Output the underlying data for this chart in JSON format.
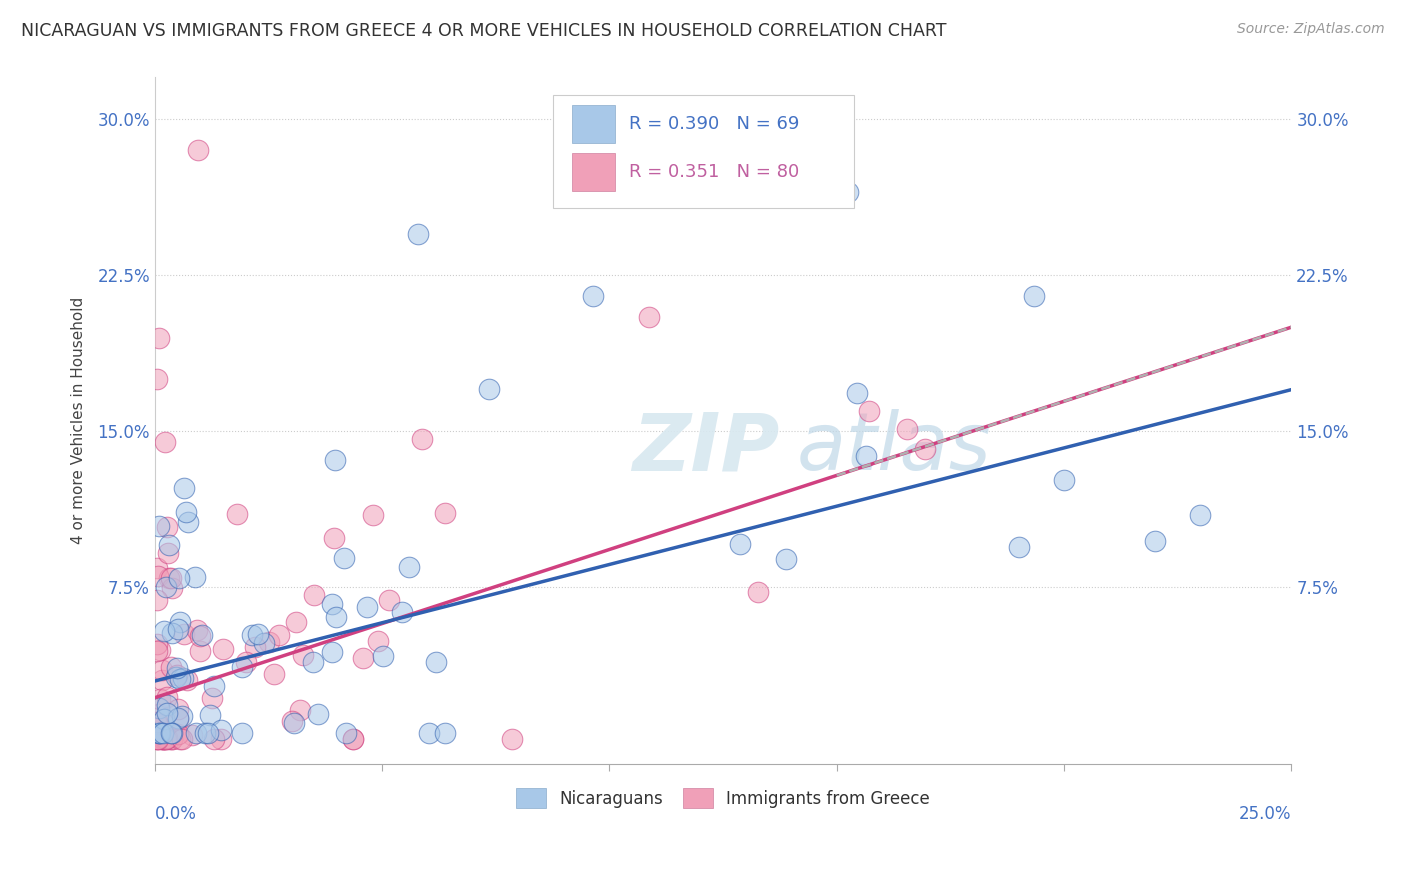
{
  "title": "NICARAGUAN VS IMMIGRANTS FROM GREECE 4 OR MORE VEHICLES IN HOUSEHOLD CORRELATION CHART",
  "source": "Source: ZipAtlas.com",
  "ylabel": "4 or more Vehicles in Household",
  "ytick_positions": [
    0.0,
    0.075,
    0.15,
    0.225,
    0.3
  ],
  "ytick_labels": [
    "",
    "7.5%",
    "15.0%",
    "22.5%",
    "30.0%"
  ],
  "xlim": [
    0.0,
    0.25
  ],
  "ylim": [
    -0.01,
    0.32
  ],
  "color_blue": "#a8c8e8",
  "color_pink": "#f0a0b8",
  "color_blue_line": "#3060b0",
  "color_pink_line": "#d04080",
  "watermark_zip": "ZIP",
  "watermark_atlas": "atlas",
  "legend_entries": [
    {
      "r": "0.390",
      "n": "69",
      "color": "#a8c8e8",
      "text_color": "#4472c4"
    },
    {
      "r": "0.351",
      "n": "80",
      "color": "#f0a0b8",
      "text_color": "#c060a0"
    }
  ]
}
